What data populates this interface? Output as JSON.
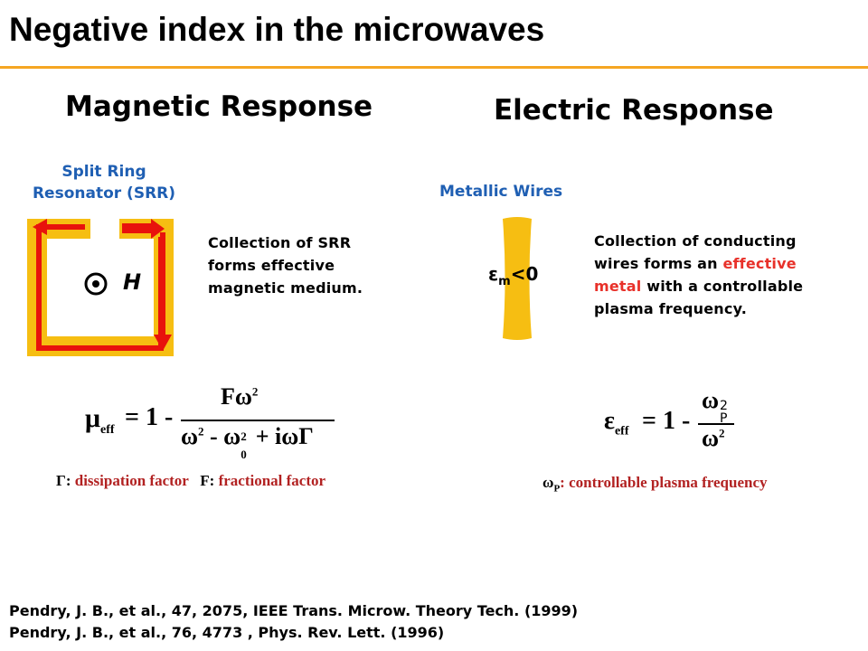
{
  "title": "Negative index in the microwaves",
  "magnetic": {
    "heading": "Magnetic Response",
    "label_line1": "Split Ring",
    "label_line2": "Resonator (SRR)",
    "field_label": "H",
    "desc_line1": "Collection of SRR",
    "desc_line2": "forms effective",
    "desc_line3": "magnetic medium.",
    "formula": {
      "lhs": "μ",
      "lhs_sub": "eff",
      "equals_one": "= 1 -",
      "num": "Fω",
      "num_sup": "2",
      "den_a": "ω",
      "den_a_sup": "2",
      "den_minus": "- ω",
      "den_b_sub": "0",
      "den_b_sup": "2",
      "den_rest": "+ iωΓ"
    },
    "cap_gamma_symbol": "Γ:",
    "cap_gamma_text": "dissipation factor",
    "cap_f_symbol": "F:",
    "cap_f_text": "fractional factor"
  },
  "electric": {
    "heading": "Electric Response",
    "label": "Metallic Wires",
    "wire_eps": "ε",
    "wire_sub": "m",
    "wire_rel": "<0",
    "desc_line1": "Collection of conducting",
    "desc_line2_a": "wires forms an ",
    "desc_line2_b": "effective",
    "desc_line3_a": "metal",
    "desc_line3_b": " with a controllable",
    "desc_line4": "plasma frequency.",
    "formula": {
      "lhs": "ε",
      "lhs_sub": "eff",
      "equals_one": "= 1 -",
      "num": "ω",
      "num_sub": "P",
      "num_sup": "2",
      "den": "ω",
      "den_sup": "2"
    },
    "cap_symbol": "ω",
    "cap_sub": "P",
    "cap_text": ": controllable plasma frequency"
  },
  "references": [
    "Pendry, J. B., et al., 47, 2075, IEEE Trans. Microw. Theory Tech. (1999)",
    "Pendry, J. B., et al., 76, 4773 , Phys. Rev. Lett. (1996)"
  ]
}
